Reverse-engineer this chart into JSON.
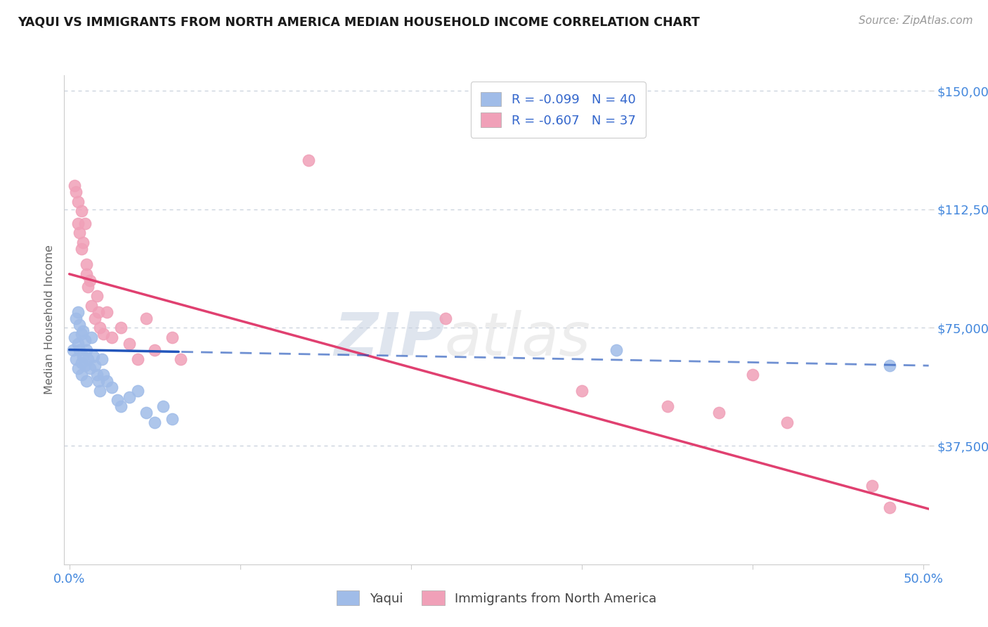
{
  "title": "YAQUI VS IMMIGRANTS FROM NORTH AMERICA MEDIAN HOUSEHOLD INCOME CORRELATION CHART",
  "source_text": "Source: ZipAtlas.com",
  "ylabel": "Median Household Income",
  "xlim": [
    -0.003,
    0.503
  ],
  "ylim": [
    0,
    155000
  ],
  "ytick_vals": [
    37500,
    75000,
    112500,
    150000
  ],
  "ytick_labels": [
    "$37,500",
    "$75,000",
    "$112,500",
    "$150,000"
  ],
  "xtick_vals": [
    0.0,
    0.1,
    0.2,
    0.3,
    0.4,
    0.5
  ],
  "xtick_labels": [
    "0.0%",
    "",
    "",
    "",
    "",
    "50.0%"
  ],
  "bg_color": "#ffffff",
  "grid_color": "#c8d0dc",
  "yaqui_dot_color": "#a0bce8",
  "imm_dot_color": "#f0a0b8",
  "yaqui_line_color": "#2255bb",
  "imm_line_color": "#e04070",
  "title_color": "#1a1a1a",
  "axis_label_color": "#666666",
  "tick_color": "#4488dd",
  "R1": "-0.099",
  "N1": "40",
  "R2": "-0.607",
  "N2": "37",
  "yaqui_x": [
    0.002,
    0.003,
    0.004,
    0.004,
    0.005,
    0.005,
    0.005,
    0.006,
    0.006,
    0.007,
    0.007,
    0.007,
    0.008,
    0.008,
    0.009,
    0.009,
    0.01,
    0.01,
    0.011,
    0.012,
    0.013,
    0.014,
    0.015,
    0.016,
    0.017,
    0.018,
    0.019,
    0.02,
    0.022,
    0.025,
    0.028,
    0.03,
    0.035,
    0.04,
    0.045,
    0.05,
    0.055,
    0.06,
    0.32,
    0.48
  ],
  "yaqui_y": [
    68000,
    72000,
    78000,
    65000,
    80000,
    70000,
    62000,
    76000,
    68000,
    73000,
    64000,
    60000,
    74000,
    66000,
    71000,
    63000,
    68000,
    58000,
    65000,
    62000,
    72000,
    66000,
    63000,
    60000,
    58000,
    55000,
    65000,
    60000,
    58000,
    56000,
    52000,
    50000,
    53000,
    55000,
    48000,
    45000,
    50000,
    46000,
    68000,
    63000
  ],
  "imm_x": [
    0.003,
    0.004,
    0.005,
    0.005,
    0.006,
    0.007,
    0.007,
    0.008,
    0.009,
    0.01,
    0.01,
    0.011,
    0.012,
    0.013,
    0.015,
    0.016,
    0.017,
    0.018,
    0.02,
    0.022,
    0.025,
    0.03,
    0.035,
    0.04,
    0.045,
    0.05,
    0.06,
    0.065,
    0.14,
    0.22,
    0.3,
    0.35,
    0.38,
    0.4,
    0.42,
    0.47,
    0.48
  ],
  "imm_y": [
    120000,
    118000,
    115000,
    108000,
    105000,
    112000,
    100000,
    102000,
    108000,
    92000,
    95000,
    88000,
    90000,
    82000,
    78000,
    85000,
    80000,
    75000,
    73000,
    80000,
    72000,
    75000,
    70000,
    65000,
    78000,
    68000,
    72000,
    65000,
    128000,
    78000,
    55000,
    50000,
    48000,
    60000,
    45000,
    25000,
    18000
  ]
}
